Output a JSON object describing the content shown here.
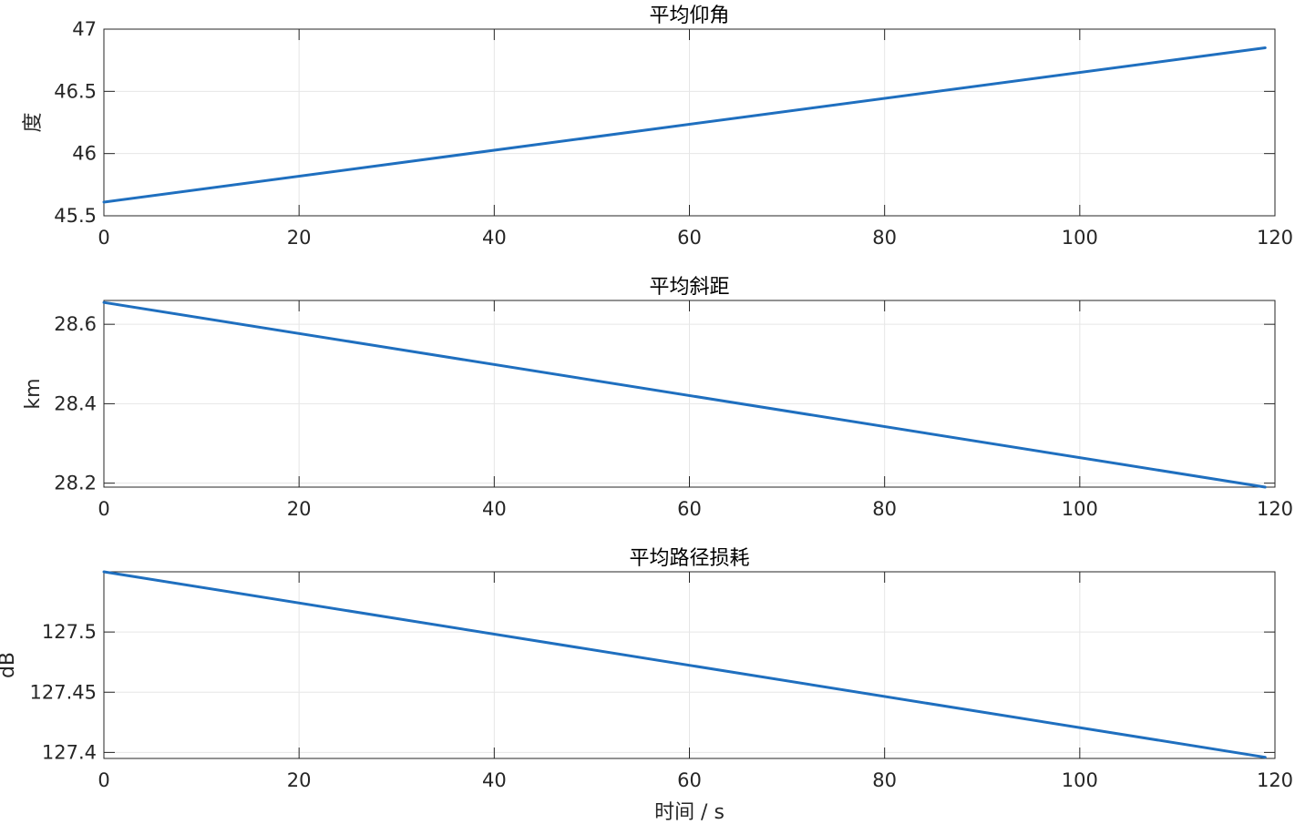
{
  "chart_data": [
    {
      "type": "line",
      "title": "平均仰角",
      "xlabel": "",
      "ylabel": "度",
      "xlim": [
        0,
        120
      ],
      "ylim": [
        45.5,
        47
      ],
      "xticks": [
        0,
        20,
        40,
        60,
        80,
        100,
        120
      ],
      "xtick_labels": [
        "0",
        "20",
        "40",
        "60",
        "80",
        "100",
        "120"
      ],
      "yticks": [
        45.5,
        46,
        46.5,
        47
      ],
      "ytick_labels": [
        "45.5",
        "46",
        "46.5",
        "47"
      ],
      "grid": true,
      "color": "#1f6fbf",
      "series": [
        {
          "x": [
            0,
            119
          ],
          "y": [
            45.61,
            46.85
          ]
        }
      ]
    },
    {
      "type": "line",
      "title": "平均斜距",
      "xlabel": "",
      "ylabel": "km",
      "xlim": [
        0,
        120
      ],
      "ylim": [
        28.19,
        28.66
      ],
      "xticks": [
        0,
        20,
        40,
        60,
        80,
        100,
        120
      ],
      "xtick_labels": [
        "0",
        "20",
        "40",
        "60",
        "80",
        "100",
        "120"
      ],
      "yticks": [
        28.2,
        28.4,
        28.6
      ],
      "ytick_labels": [
        "28.2",
        "28.4",
        "28.6"
      ],
      "grid": true,
      "color": "#1f6fbf",
      "series": [
        {
          "x": [
            0,
            119
          ],
          "y": [
            28.655,
            28.19
          ]
        }
      ]
    },
    {
      "type": "line",
      "title": "平均路径损耗",
      "xlabel": "时间 / s",
      "ylabel": "dB",
      "xlim": [
        0,
        120
      ],
      "ylim": [
        127.395,
        127.55
      ],
      "xticks": [
        0,
        20,
        40,
        60,
        80,
        100,
        120
      ],
      "xtick_labels": [
        "0",
        "20",
        "40",
        "60",
        "80",
        "100",
        "120"
      ],
      "yticks": [
        127.4,
        127.45,
        127.5
      ],
      "ytick_labels": [
        "127.4",
        "127.45",
        "127.5"
      ],
      "grid": true,
      "color": "#1f6fbf",
      "series": [
        {
          "x": [
            0,
            119
          ],
          "y": [
            127.55,
            127.396
          ]
        }
      ]
    }
  ]
}
